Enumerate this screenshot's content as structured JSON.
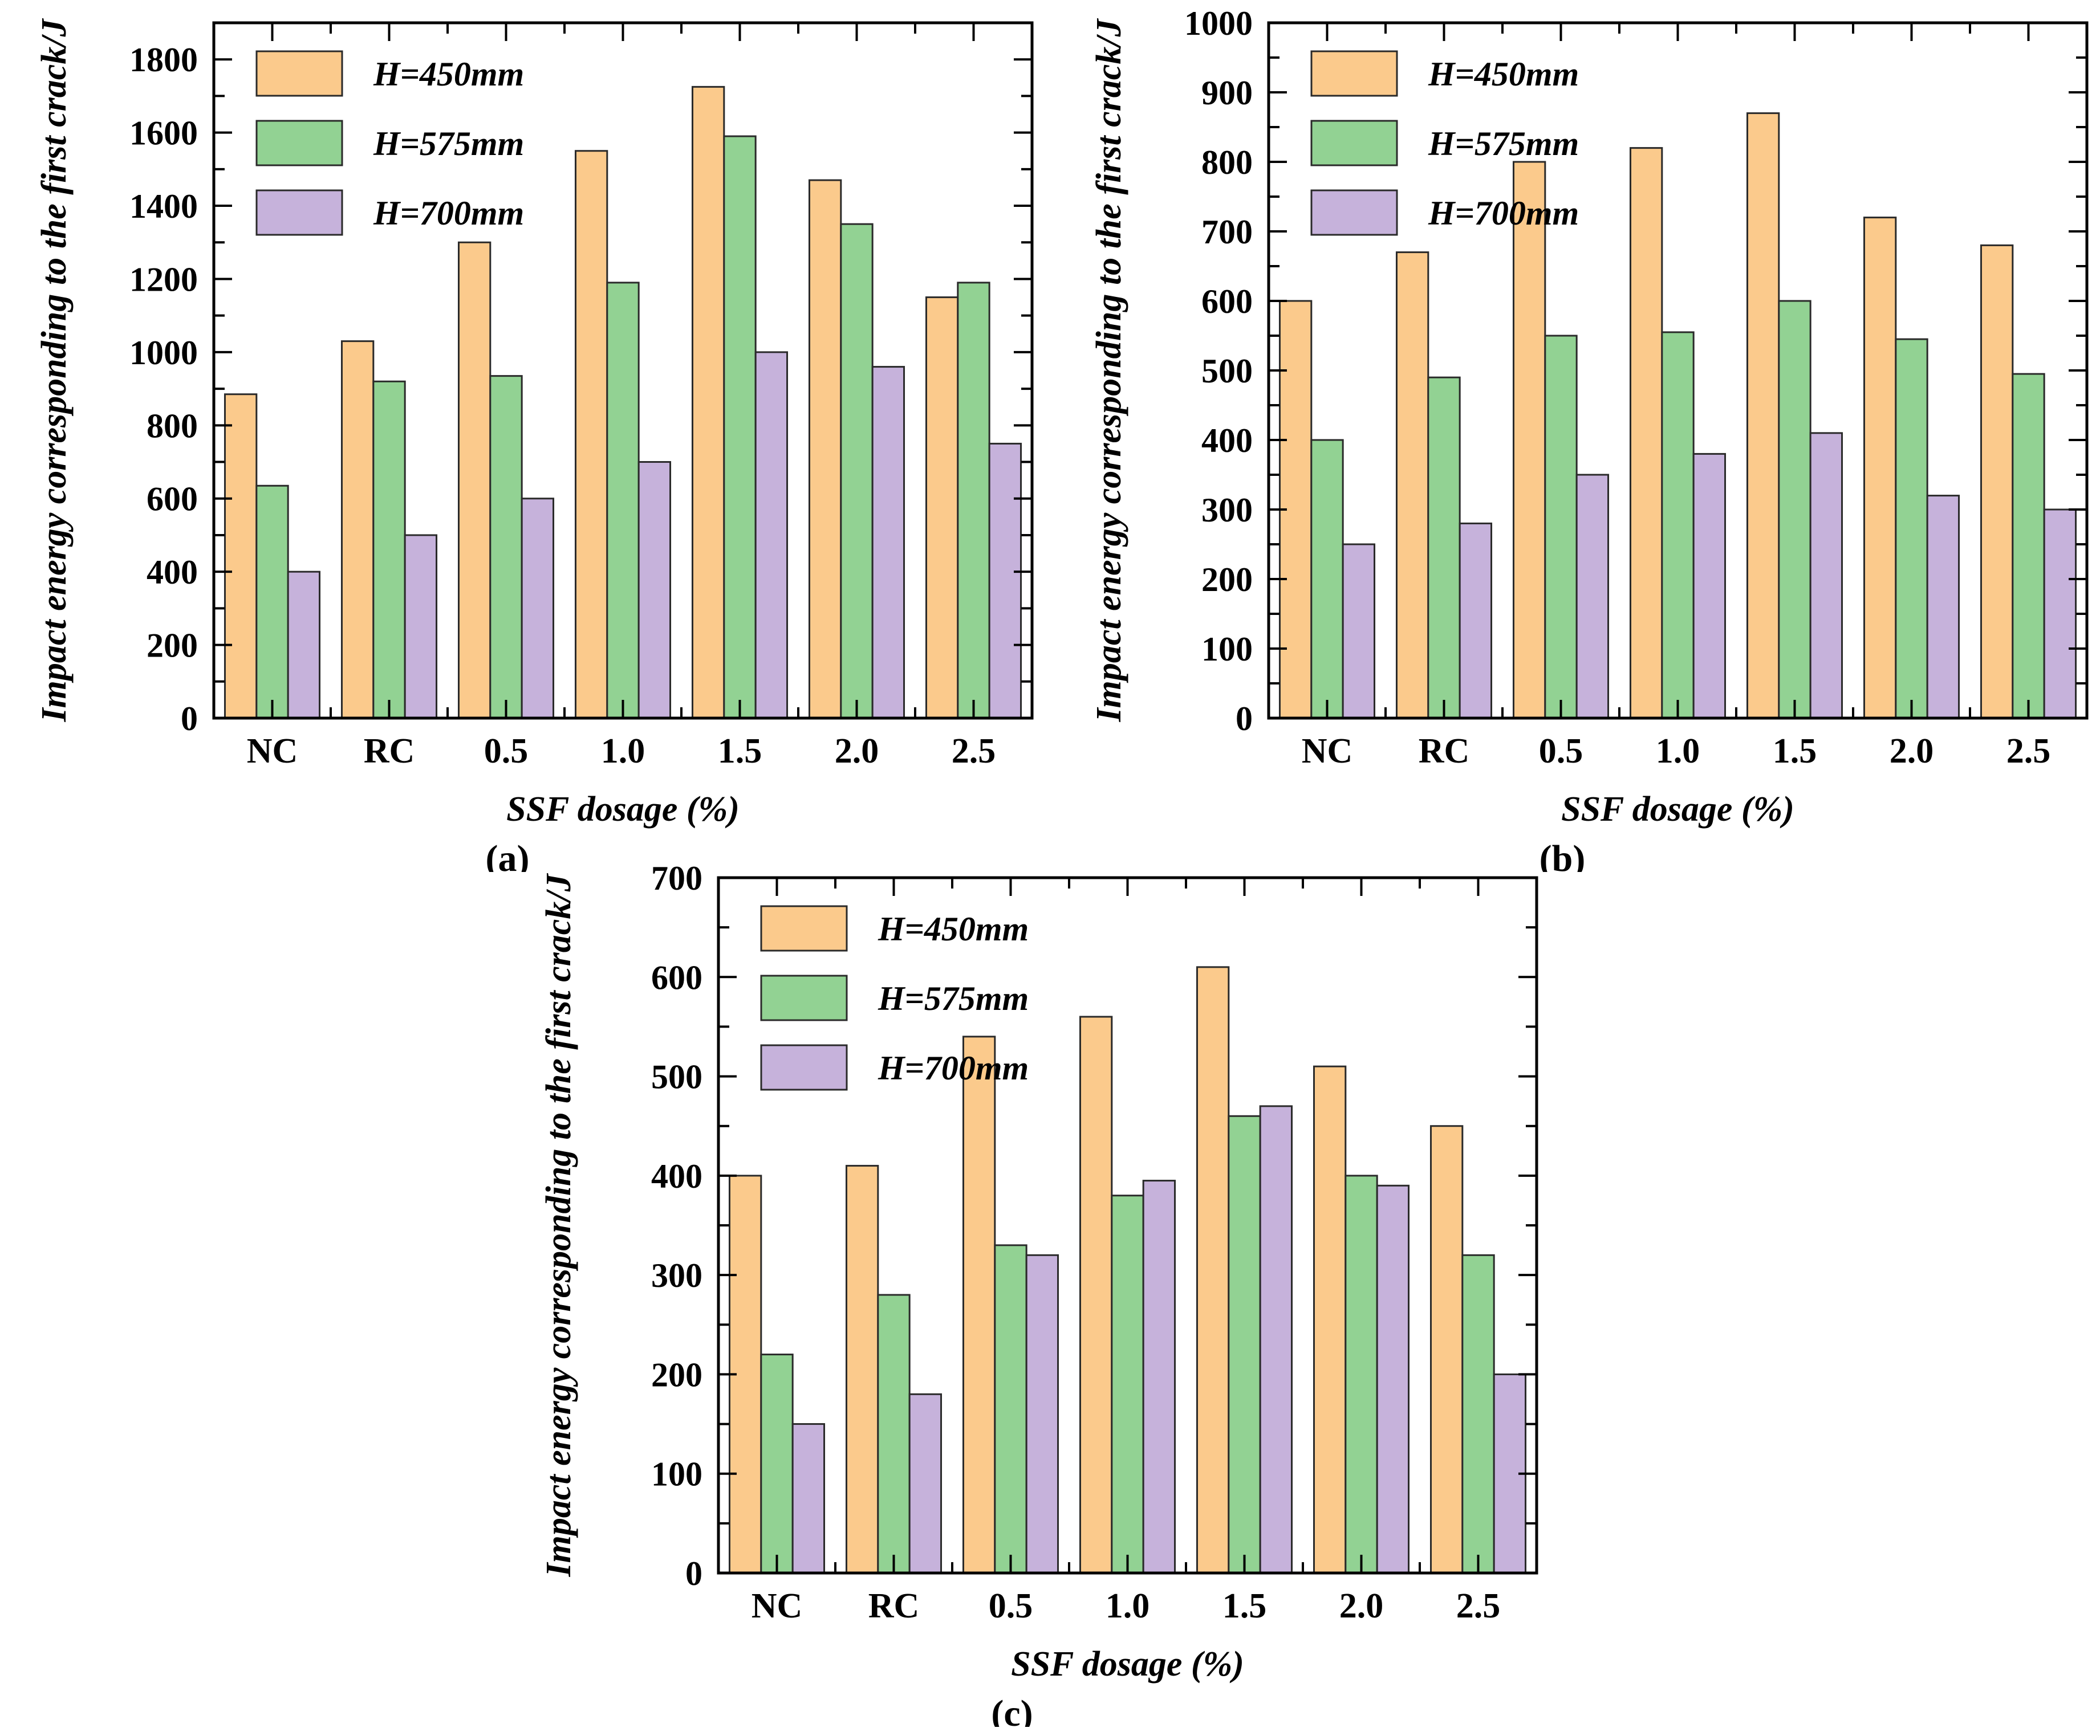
{
  "figure": {
    "background": "#ffffff",
    "axis_color": "#000000",
    "bar_edge_color": "#2a2a2a",
    "series_colors": {
      "H450": "#FBCA8C",
      "H575": "#92D293",
      "H700": "#C6B2DB"
    }
  },
  "chart_data": [
    {
      "type": "bar",
      "panel": "(a)",
      "categories": [
        "NC",
        "RC",
        "0.5",
        "1.0",
        "1.5",
        "2.0",
        "2.5"
      ],
      "series": [
        {
          "name": "H=450mm",
          "color": "#FBCA8C",
          "values": [
            885,
            1030,
            1300,
            1550,
            1725,
            1470,
            1150
          ]
        },
        {
          "name": "H=575mm",
          "color": "#92D293",
          "values": [
            635,
            920,
            935,
            1190,
            1590,
            1350,
            1190
          ]
        },
        {
          "name": "H=700mm",
          "color": "#C6B2DB",
          "values": [
            400,
            500,
            600,
            700,
            1000,
            960,
            750
          ]
        }
      ],
      "xlabel": "SSF dosage (%)",
      "ylabel": "Impact energy corresponding to the first crack/J",
      "ylim": [
        0,
        1900
      ],
      "ytick_step": 200,
      "ytick_max": 1800,
      "yminor_step": 100,
      "ytick_labels": [
        "0",
        "200",
        "400",
        "600",
        "800",
        "1000",
        "1200",
        "1400",
        "1600",
        "1800"
      ],
      "legend_position": "top-left",
      "grid": false
    },
    {
      "type": "bar",
      "panel": "(b)",
      "categories": [
        "NC",
        "RC",
        "0.5",
        "1.0",
        "1.5",
        "2.0",
        "2.5"
      ],
      "series": [
        {
          "name": "H=450mm",
          "color": "#FBCA8C",
          "values": [
            600,
            670,
            800,
            820,
            870,
            720,
            680
          ]
        },
        {
          "name": "H=575mm",
          "color": "#92D293",
          "values": [
            400,
            490,
            550,
            555,
            600,
            545,
            495
          ]
        },
        {
          "name": "H=700mm",
          "color": "#C6B2DB",
          "values": [
            250,
            280,
            350,
            380,
            410,
            320,
            300
          ]
        }
      ],
      "xlabel": "SSF dosage (%)",
      "ylabel": "Impact energy corresponding to the first crack/J",
      "ylim": [
        0,
        1000
      ],
      "ytick_step": 100,
      "ytick_max": 1000,
      "yminor_step": 50,
      "ytick_labels": [
        "0",
        "100",
        "200",
        "300",
        "400",
        "500",
        "600",
        "700",
        "800",
        "900",
        "1000"
      ],
      "legend_position": "top-left",
      "grid": false
    },
    {
      "type": "bar",
      "panel": "(c)",
      "categories": [
        "NC",
        "RC",
        "0.5",
        "1.0",
        "1.5",
        "2.0",
        "2.5"
      ],
      "series": [
        {
          "name": "H=450mm",
          "color": "#FBCA8C",
          "values": [
            400,
            410,
            540,
            560,
            610,
            510,
            450
          ]
        },
        {
          "name": "H=575mm",
          "color": "#92D293",
          "values": [
            220,
            280,
            330,
            380,
            460,
            400,
            320
          ]
        },
        {
          "name": "H=700mm",
          "color": "#C6B2DB",
          "values": [
            150,
            180,
            320,
            395,
            470,
            390,
            200
          ]
        }
      ],
      "xlabel": "SSF dosage (%)",
      "ylabel": "Impact energy corresponding to the first crack/J",
      "ylim": [
        0,
        700
      ],
      "ytick_step": 100,
      "ytick_max": 700,
      "yminor_step": 50,
      "ytick_labels": [
        "0",
        "100",
        "200",
        "300",
        "400",
        "500",
        "600",
        "700"
      ],
      "legend_position": "top-left",
      "grid": false
    }
  ]
}
